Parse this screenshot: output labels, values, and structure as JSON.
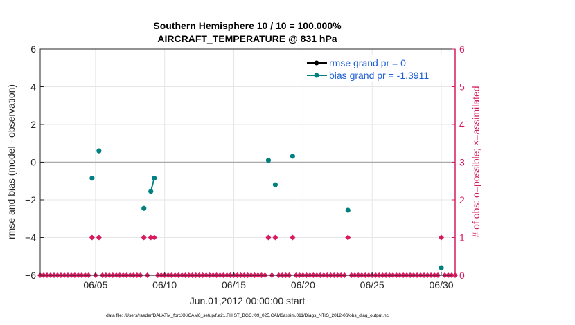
{
  "chart_data": {
    "type": "scatter",
    "title_line1": "Southern Hemisphere 10 / 10 = 100.000%",
    "title_line2": "AIRCRAFT_TEMPERATURE @ 831 hPa",
    "xlabel": "Jun.01,2012 00:00:00 start",
    "ylabel_left": "rmse and bias (model - observation)",
    "ylabel_right": "# of obs: o=possible; ×=assimilated",
    "footer": "data file: /Users/raeder/DAI/ATM_forcXX/CAM6_setup/f.e21.FHIST_BGC.f09_025.CAM6assim.011/Diags_NTrS_2012-06/obs_diag_output.nc",
    "xlim": [
      1,
      31
    ],
    "ylim_left": [
      -6,
      6
    ],
    "ylim_right": [
      0,
      6
    ],
    "x_ticks": [
      {
        "v": 5,
        "label": "06/05"
      },
      {
        "v": 10,
        "label": "06/10"
      },
      {
        "v": 15,
        "label": "06/15"
      },
      {
        "v": 20,
        "label": "06/20"
      },
      {
        "v": 25,
        "label": "06/25"
      },
      {
        "v": 30,
        "label": "06/30"
      }
    ],
    "y_ticks_left": [
      {
        "v": -6,
        "label": "−6"
      },
      {
        "v": -4,
        "label": "−4"
      },
      {
        "v": -2,
        "label": "−2"
      },
      {
        "v": 0,
        "label": "0"
      },
      {
        "v": 2,
        "label": "2"
      },
      {
        "v": 4,
        "label": "4"
      },
      {
        "v": 6,
        "label": "6"
      }
    ],
    "y_ticks_right": [
      {
        "v": 0,
        "label": "0"
      },
      {
        "v": 1,
        "label": "1"
      },
      {
        "v": 2,
        "label": "2"
      },
      {
        "v": 3,
        "label": "3"
      },
      {
        "v": 4,
        "label": "4"
      },
      {
        "v": 5,
        "label": "5"
      },
      {
        "v": 6,
        "label": "6"
      }
    ],
    "legend": [
      {
        "label": "rmse grand pr = 0",
        "color": "#000000"
      },
      {
        "label": "bias grand pr = -1.3911",
        "color": "#008080"
      }
    ],
    "zero_line_color": "#aaaaaa",
    "bias_color": "#008080",
    "obs_color": "#d81b60",
    "right_axis_color": "#d81b60",
    "bias_segments": [
      [
        {
          "x": 4.75,
          "y": -0.85
        }
      ],
      [
        {
          "x": 5.25,
          "y": 0.6
        }
      ],
      [
        {
          "x": 8.5,
          "y": -2.45
        }
      ],
      [
        {
          "x": 9.0,
          "y": -1.55
        },
        {
          "x": 9.25,
          "y": -0.85
        }
      ],
      [
        {
          "x": 17.5,
          "y": 0.1
        }
      ],
      [
        {
          "x": 18.0,
          "y": -1.2
        }
      ],
      [
        {
          "x": 19.25,
          "y": 0.32
        }
      ],
      [
        {
          "x": 23.25,
          "y": -2.55
        }
      ],
      [
        {
          "x": 30.0,
          "y": -5.6
        }
      ]
    ],
    "obs_start": 1.0,
    "obs_step": 0.25,
    "obs_end": 31.0,
    "obs_ones": [
      4.75,
      5.25,
      8.5,
      9.0,
      9.25,
      17.5,
      18.0,
      19.25,
      23.25,
      30.0
    ]
  }
}
